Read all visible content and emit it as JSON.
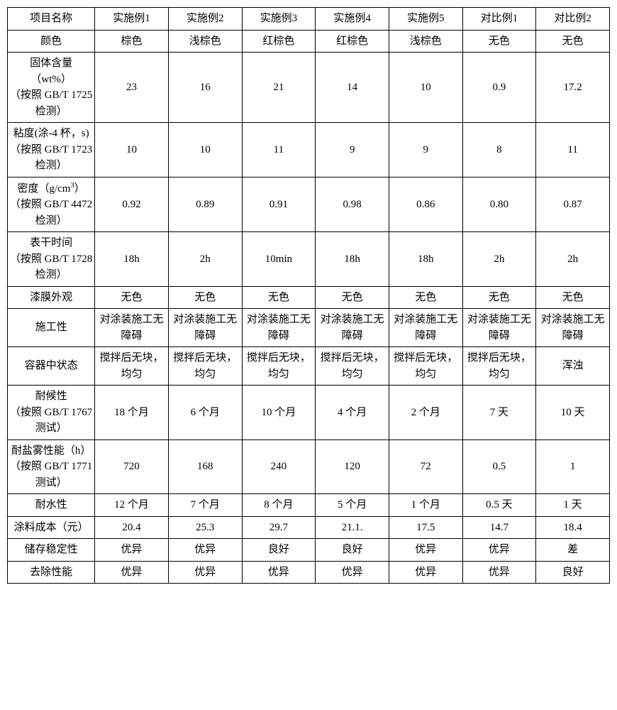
{
  "table": {
    "columns": [
      "项目名称",
      "实施例1",
      "实施例2",
      "实施例3",
      "实施例4",
      "实施例5",
      "对比例1",
      "对比例2"
    ],
    "rows": [
      {
        "label": "颜色",
        "cells": [
          "棕色",
          "浅棕色",
          "红棕色",
          "红棕色",
          "浅棕色",
          "无色",
          "无色"
        ]
      },
      {
        "label": "固体含量\n（wt%）\n（按照 GB/T 1725 检测）",
        "cells": [
          "23",
          "16",
          "21",
          "14",
          "10",
          "0.9",
          "17.2"
        ]
      },
      {
        "label": "粘度(涂-4 杯，s)\n（按照 GB/T 1723 检测）",
        "cells": [
          "10",
          "10",
          "11",
          "9",
          "9",
          "8",
          "11"
        ]
      },
      {
        "label_html": "密度（g/cm<sup>3</sup>）<br>（按照 GB/T 4472 检测）",
        "cells": [
          "0.92",
          "0.89",
          "0.91",
          "0.98",
          "0.86",
          "0.80",
          "0.87"
        ]
      },
      {
        "label": "表干时间\n（按照 GB/T 1728 检测）",
        "cells": [
          "18h",
          "2h",
          "10min",
          "18h",
          "18h",
          "2h",
          "2h"
        ]
      },
      {
        "label": "漆膜外观",
        "cells": [
          "无色",
          "无色",
          "无色",
          "无色",
          "无色",
          "无色",
          "无色"
        ]
      },
      {
        "label": "施工性",
        "cells": [
          "对涂装施工无障碍",
          "对涂装施工无障碍",
          "对涂装施工无障碍",
          "对涂装施工无障碍",
          "对涂装施工无障碍",
          "对涂装施工无障碍",
          "对涂装施工无障碍"
        ]
      },
      {
        "label": "容器中状态",
        "cells": [
          "搅拌后无块，均匀",
          "搅拌后无块，均匀",
          "搅拌后无块，均匀",
          "搅拌后无块，均匀",
          "搅拌后无块，均匀",
          "搅拌后无块，均匀",
          "浑浊"
        ]
      },
      {
        "label": "耐候性\n（按照 GB/T 1767 测试）",
        "cells": [
          "18 个月",
          "6 个月",
          "10 个月",
          "4 个月",
          "2 个月",
          "7 天",
          "10 天"
        ]
      },
      {
        "label": "耐盐雾性能（h）\n（按照 GB/T 1771 测试）",
        "cells": [
          "720",
          "168",
          "240",
          "120",
          "72",
          "0.5",
          "1"
        ]
      },
      {
        "label": "耐水性",
        "cells": [
          "12 个月",
          "7 个月",
          "8 个月",
          "5 个月",
          "1 个月",
          "0.5 天",
          "1 天"
        ]
      },
      {
        "label": "涂料成本（元）",
        "cells": [
          "20.4",
          "25.3",
          "29.7",
          "21.1.",
          "17.5",
          "14.7",
          "18.4"
        ]
      },
      {
        "label": "储存稳定性",
        "cells": [
          "优异",
          "优异",
          "良好",
          "良好",
          "优异",
          "优异",
          "差"
        ]
      },
      {
        "label": "去除性能",
        "cells": [
          "优异",
          "优异",
          "优异",
          "优异",
          "优异",
          "优异",
          "良好"
        ]
      }
    ],
    "styling": {
      "border_color": "#000000",
      "background_color": "#ffffff",
      "text_color": "#000000",
      "font_family": "SimSun",
      "font_size_pt": 11,
      "cell_align": "center",
      "cell_valign": "middle"
    }
  }
}
